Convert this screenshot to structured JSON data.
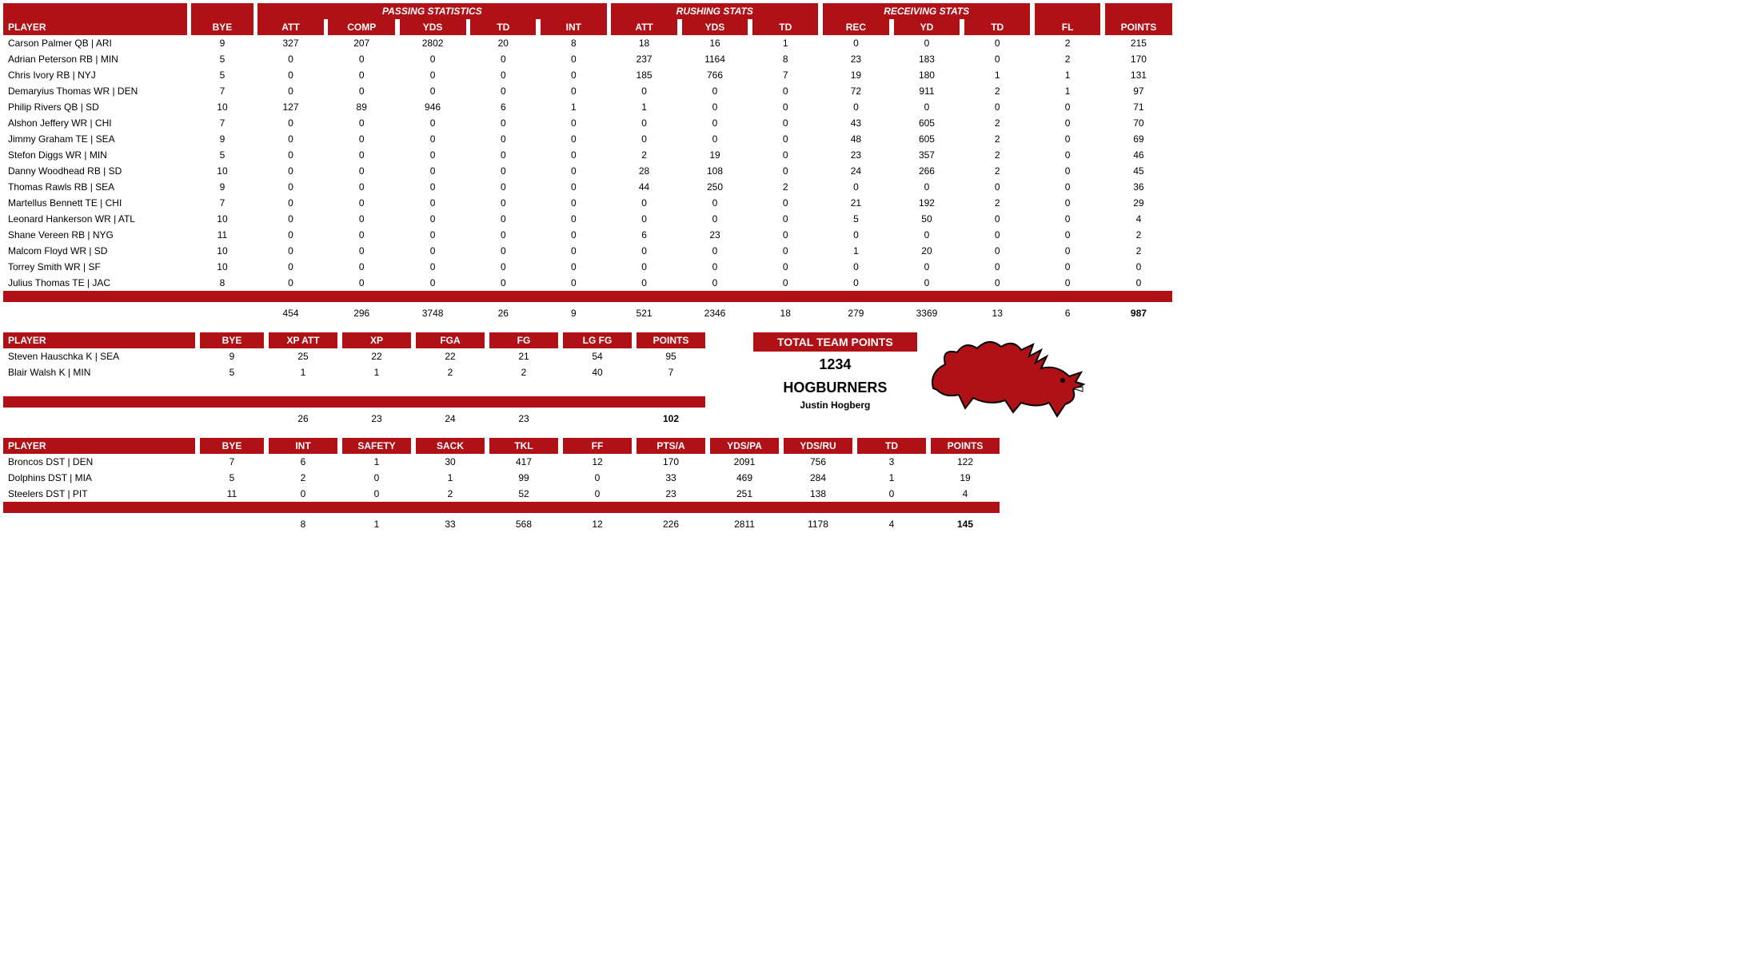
{
  "colors": {
    "header_bg": "#b01116",
    "header_fg": "#ffffff",
    "body_bg": "#ffffff",
    "text": "#000000"
  },
  "main": {
    "group_headers": {
      "passing": "PASSING STATISTICS",
      "rushing": "RUSHING STATS",
      "receiving": "RECEIVING STATS"
    },
    "columns": [
      "PLAYER",
      "BYE",
      "ATT",
      "COMP",
      "YDS",
      "TD",
      "INT",
      "ATT",
      "YDS",
      "TD",
      "REC",
      "YD",
      "TD",
      "FL",
      "POINTS"
    ],
    "rows": [
      {
        "player": "Carson Palmer QB | ARI",
        "bye": 9,
        "p_att": 327,
        "p_comp": 207,
        "p_yds": 2802,
        "p_td": 20,
        "p_int": 8,
        "r_att": 18,
        "r_yds": 16,
        "r_td": 1,
        "rec": 0,
        "rc_yd": 0,
        "rc_td": 0,
        "fl": 2,
        "pts": 215
      },
      {
        "player": "Adrian Peterson RB | MIN",
        "bye": 5,
        "p_att": 0,
        "p_comp": 0,
        "p_yds": 0,
        "p_td": 0,
        "p_int": 0,
        "r_att": 237,
        "r_yds": 1164,
        "r_td": 8,
        "rec": 23,
        "rc_yd": 183,
        "rc_td": 0,
        "fl": 2,
        "pts": 170
      },
      {
        "player": "Chris Ivory RB | NYJ",
        "bye": 5,
        "p_att": 0,
        "p_comp": 0,
        "p_yds": 0,
        "p_td": 0,
        "p_int": 0,
        "r_att": 185,
        "r_yds": 766,
        "r_td": 7,
        "rec": 19,
        "rc_yd": 180,
        "rc_td": 1,
        "fl": 1,
        "pts": 131
      },
      {
        "player": "Demaryius Thomas WR | DEN",
        "bye": 7,
        "p_att": 0,
        "p_comp": 0,
        "p_yds": 0,
        "p_td": 0,
        "p_int": 0,
        "r_att": 0,
        "r_yds": 0,
        "r_td": 0,
        "rec": 72,
        "rc_yd": 911,
        "rc_td": 2,
        "fl": 1,
        "pts": 97
      },
      {
        "player": "Philip Rivers QB | SD",
        "bye": 10,
        "p_att": 127,
        "p_comp": 89,
        "p_yds": 946,
        "p_td": 6,
        "p_int": 1,
        "r_att": 1,
        "r_yds": 0,
        "r_td": 0,
        "rec": 0,
        "rc_yd": 0,
        "rc_td": 0,
        "fl": 0,
        "pts": 71
      },
      {
        "player": "Alshon Jeffery WR | CHI",
        "bye": 7,
        "p_att": 0,
        "p_comp": 0,
        "p_yds": 0,
        "p_td": 0,
        "p_int": 0,
        "r_att": 0,
        "r_yds": 0,
        "r_td": 0,
        "rec": 43,
        "rc_yd": 605,
        "rc_td": 2,
        "fl": 0,
        "pts": 70
      },
      {
        "player": "Jimmy Graham TE | SEA",
        "bye": 9,
        "p_att": 0,
        "p_comp": 0,
        "p_yds": 0,
        "p_td": 0,
        "p_int": 0,
        "r_att": 0,
        "r_yds": 0,
        "r_td": 0,
        "rec": 48,
        "rc_yd": 605,
        "rc_td": 2,
        "fl": 0,
        "pts": 69
      },
      {
        "player": "Stefon Diggs WR | MIN",
        "bye": 5,
        "p_att": 0,
        "p_comp": 0,
        "p_yds": 0,
        "p_td": 0,
        "p_int": 0,
        "r_att": 2,
        "r_yds": 19,
        "r_td": 0,
        "rec": 23,
        "rc_yd": 357,
        "rc_td": 2,
        "fl": 0,
        "pts": 46
      },
      {
        "player": "Danny Woodhead RB | SD",
        "bye": 10,
        "p_att": 0,
        "p_comp": 0,
        "p_yds": 0,
        "p_td": 0,
        "p_int": 0,
        "r_att": 28,
        "r_yds": 108,
        "r_td": 0,
        "rec": 24,
        "rc_yd": 266,
        "rc_td": 2,
        "fl": 0,
        "pts": 45
      },
      {
        "player": "Thomas Rawls RB | SEA",
        "bye": 9,
        "p_att": 0,
        "p_comp": 0,
        "p_yds": 0,
        "p_td": 0,
        "p_int": 0,
        "r_att": 44,
        "r_yds": 250,
        "r_td": 2,
        "rec": 0,
        "rc_yd": 0,
        "rc_td": 0,
        "fl": 0,
        "pts": 36
      },
      {
        "player": "Martellus Bennett TE | CHI",
        "bye": 7,
        "p_att": 0,
        "p_comp": 0,
        "p_yds": 0,
        "p_td": 0,
        "p_int": 0,
        "r_att": 0,
        "r_yds": 0,
        "r_td": 0,
        "rec": 21,
        "rc_yd": 192,
        "rc_td": 2,
        "fl": 0,
        "pts": 29
      },
      {
        "player": "Leonard Hankerson WR | ATL",
        "bye": 10,
        "p_att": 0,
        "p_comp": 0,
        "p_yds": 0,
        "p_td": 0,
        "p_int": 0,
        "r_att": 0,
        "r_yds": 0,
        "r_td": 0,
        "rec": 5,
        "rc_yd": 50,
        "rc_td": 0,
        "fl": 0,
        "pts": 4
      },
      {
        "player": "Shane Vereen RB | NYG",
        "bye": 11,
        "p_att": 0,
        "p_comp": 0,
        "p_yds": 0,
        "p_td": 0,
        "p_int": 0,
        "r_att": 6,
        "r_yds": 23,
        "r_td": 0,
        "rec": 0,
        "rc_yd": 0,
        "rc_td": 0,
        "fl": 0,
        "pts": 2
      },
      {
        "player": "Malcom Floyd WR | SD",
        "bye": 10,
        "p_att": 0,
        "p_comp": 0,
        "p_yds": 0,
        "p_td": 0,
        "p_int": 0,
        "r_att": 0,
        "r_yds": 0,
        "r_td": 0,
        "rec": 1,
        "rc_yd": 20,
        "rc_td": 0,
        "fl": 0,
        "pts": 2
      },
      {
        "player": "Torrey Smith WR | SF",
        "bye": 10,
        "p_att": 0,
        "p_comp": 0,
        "p_yds": 0,
        "p_td": 0,
        "p_int": 0,
        "r_att": 0,
        "r_yds": 0,
        "r_td": 0,
        "rec": 0,
        "rc_yd": 0,
        "rc_td": 0,
        "fl": 0,
        "pts": 0
      },
      {
        "player": "Julius Thomas TE | JAC",
        "bye": 8,
        "p_att": 0,
        "p_comp": 0,
        "p_yds": 0,
        "p_td": 0,
        "p_int": 0,
        "r_att": 0,
        "r_yds": 0,
        "r_td": 0,
        "rec": 0,
        "rc_yd": 0,
        "rc_td": 0,
        "fl": 0,
        "pts": 0
      }
    ],
    "totals": {
      "p_att": 454,
      "p_comp": 296,
      "p_yds": 3748,
      "p_td": 26,
      "p_int": 9,
      "r_att": 521,
      "r_yds": 2346,
      "r_td": 18,
      "rec": 279,
      "rc_yd": 3369,
      "rc_td": 13,
      "fl": 6,
      "pts": 987
    }
  },
  "kicker": {
    "columns": [
      "PLAYER",
      "BYE",
      "XP ATT",
      "XP",
      "FGA",
      "FG",
      "LG FG",
      "POINTS"
    ],
    "rows": [
      {
        "player": "Steven Hauschka K | SEA",
        "bye": 9,
        "xpatt": 25,
        "xp": 22,
        "fga": 22,
        "fg": 21,
        "lgfg": 54,
        "pts": 95
      },
      {
        "player": "Blair Walsh K | MIN",
        "bye": 5,
        "xpatt": 1,
        "xp": 1,
        "fga": 2,
        "fg": 2,
        "lgfg": 40,
        "pts": 7
      }
    ],
    "totals": {
      "xpatt": 26,
      "xp": 23,
      "fga": 24,
      "fg": 23,
      "pts": 102
    }
  },
  "defense": {
    "columns": [
      "PLAYER",
      "BYE",
      "INT",
      "SAFETY",
      "SACK",
      "TKL",
      "FF",
      "PTS/A",
      "YDS/PA",
      "YDS/RU",
      "TD",
      "POINTS"
    ],
    "rows": [
      {
        "player": "Broncos DST | DEN",
        "bye": 7,
        "int": 6,
        "safety": 1,
        "sack": 30,
        "tkl": 417,
        "ff": 12,
        "ptsa": 170,
        "ydspa": 2091,
        "ydsru": 756,
        "td": 3,
        "pts": 122
      },
      {
        "player": "Dolphins DST | MIA",
        "bye": 5,
        "int": 2,
        "safety": 0,
        "sack": 1,
        "tkl": 99,
        "ff": 0,
        "ptsa": 33,
        "ydspa": 469,
        "ydsru": 284,
        "td": 1,
        "pts": 19
      },
      {
        "player": "Steelers DST | PIT",
        "bye": 11,
        "int": 0,
        "safety": 0,
        "sack": 2,
        "tkl": 52,
        "ff": 0,
        "ptsa": 23,
        "ydspa": 251,
        "ydsru": 138,
        "td": 0,
        "pts": 4
      }
    ],
    "totals": {
      "int": 8,
      "safety": 1,
      "sack": 33,
      "tkl": 568,
      "ff": 12,
      "ptsa": 226,
      "ydspa": 2811,
      "ydsru": 1178,
      "td": 4,
      "pts": 145
    }
  },
  "team": {
    "title": "TOTAL TEAM POINTS",
    "points": "1234",
    "name": "HOGBURNERS",
    "owner": "Justin Hogberg"
  },
  "col_widths": {
    "player": 240,
    "bye": 80,
    "stat": 86
  }
}
